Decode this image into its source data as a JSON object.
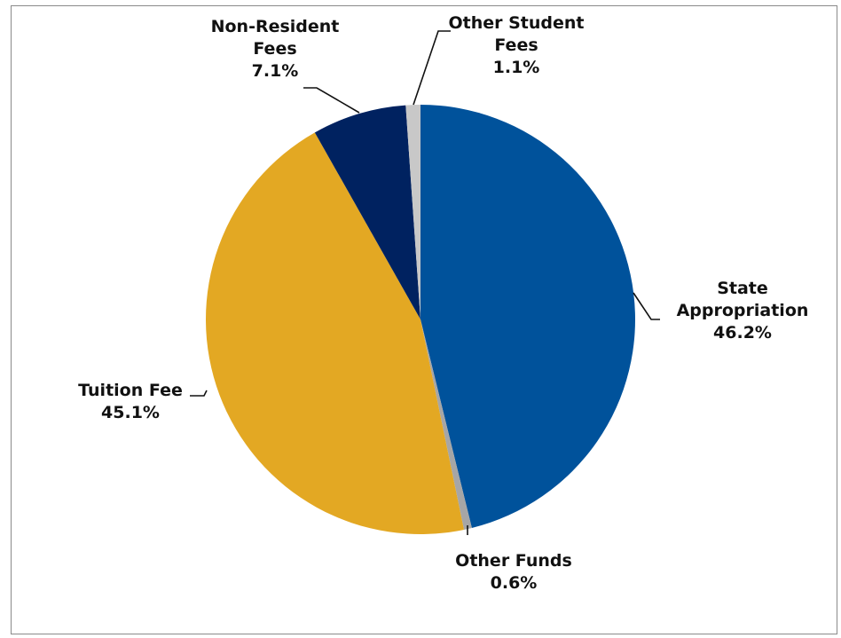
{
  "chart_data": {
    "type": "pie",
    "slices": [
      {
        "name": "State Appropriation",
        "label_lines": [
          "State",
          "Appropriation"
        ],
        "value": 46.2,
        "value_label": "46.2%",
        "color": "#00529b"
      },
      {
        "name": "Other Funds",
        "label_lines": [
          "Other Funds"
        ],
        "value": 0.6,
        "value_label": "0.6%",
        "color": "#a6a6a6"
      },
      {
        "name": "Tuition Fee",
        "label_lines": [
          "Tuition Fee"
        ],
        "value": 45.1,
        "value_label": "45.1%",
        "color": "#e3a823"
      },
      {
        "name": "Non-Resident Fees",
        "label_lines": [
          "Non-Resident",
          "Fees"
        ],
        "value": 7.1,
        "value_label": "7.1%",
        "color": "#002260"
      },
      {
        "name": "Other Student Fees",
        "label_lines": [
          "Other Student",
          "Fees"
        ],
        "value": 1.1,
        "value_label": "1.1%",
        "color": "#c8c8c8"
      }
    ],
    "start": "12 o'clock",
    "direction": "clockwise",
    "legend": "none"
  }
}
